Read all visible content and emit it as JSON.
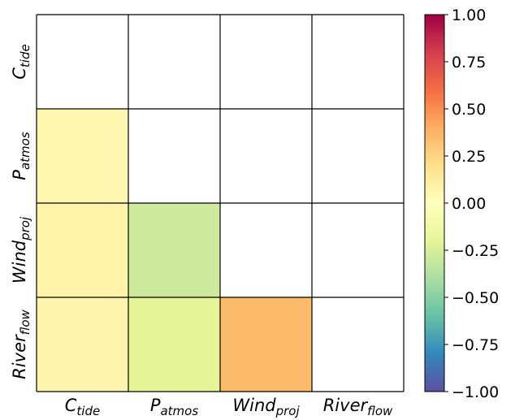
{
  "chart_data": {
    "type": "heatmap",
    "variables": [
      {
        "main": "C",
        "sub": "tide"
      },
      {
        "main": "P",
        "sub": "atmos"
      },
      {
        "main": "Wind",
        "sub": "proj"
      },
      {
        "main": "River",
        "sub": "flow"
      }
    ],
    "matrix": [
      [
        null,
        null,
        null,
        null
      ],
      [
        0.06,
        null,
        null,
        null
      ],
      [
        0.08,
        -0.28,
        null,
        null
      ],
      [
        0.07,
        -0.2,
        0.35,
        null
      ]
    ],
    "mask": "upper triangle and diagonal left blank",
    "colorscale": "Spectral",
    "vmin": -1.0,
    "vmax": 1.0,
    "colorbar_ticks": [
      "1.00",
      "0.75",
      "0.50",
      "0.25",
      "0.00",
      "−0.25",
      "−0.50",
      "−0.75",
      "−1.00"
    ],
    "grid": true
  }
}
